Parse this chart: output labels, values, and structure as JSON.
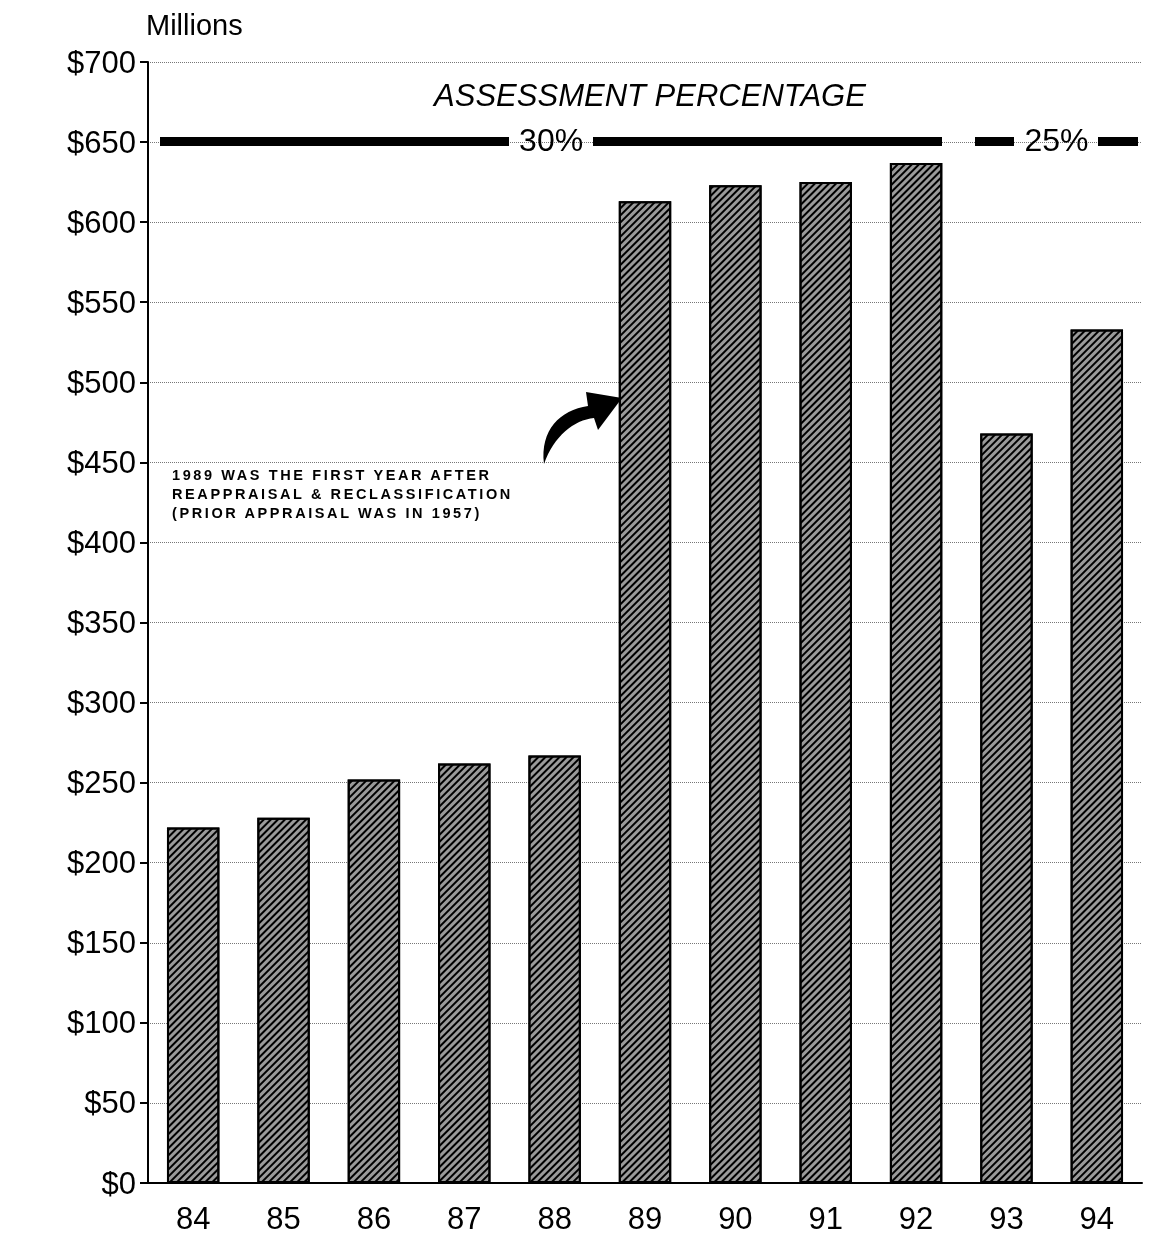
{
  "chart_data": {
    "type": "bar",
    "ylabel": "Millions",
    "categories": [
      "84",
      "85",
      "86",
      "87",
      "88",
      "89",
      "90",
      "91",
      "92",
      "93",
      "94"
    ],
    "values": [
      222,
      228,
      252,
      262,
      267,
      613,
      623,
      625,
      637,
      468,
      533
    ],
    "color": "#9a9a9a",
    "ylim": [
      0,
      700
    ],
    "yticks": [
      {
        "value": 0,
        "label": "$0"
      },
      {
        "value": 50,
        "label": "$50"
      },
      {
        "value": 100,
        "label": "$100"
      },
      {
        "value": 150,
        "label": "$150"
      },
      {
        "value": 200,
        "label": "$200"
      },
      {
        "value": 250,
        "label": "$250"
      },
      {
        "value": 300,
        "label": "$300"
      },
      {
        "value": 350,
        "label": "$350"
      },
      {
        "value": 400,
        "label": "$400"
      },
      {
        "value": 450,
        "label": "$450"
      },
      {
        "value": 500,
        "label": "$500"
      },
      {
        "value": 550,
        "label": "$550"
      },
      {
        "value": 600,
        "label": "$600"
      },
      {
        "value": 650,
        "label": "$650"
      },
      {
        "value": 700,
        "label": "$700"
      }
    ],
    "grid": "y",
    "annotations": [
      "ASSESSMENT PERCENTAGE",
      "30%",
      "25%",
      "1989 WAS THE FIRST YEAR AFTER\nREAPPRAISAL & RECLASSIFICATION\n(PRIOR APPRAISAL WAS IN 1957)"
    ]
  }
}
